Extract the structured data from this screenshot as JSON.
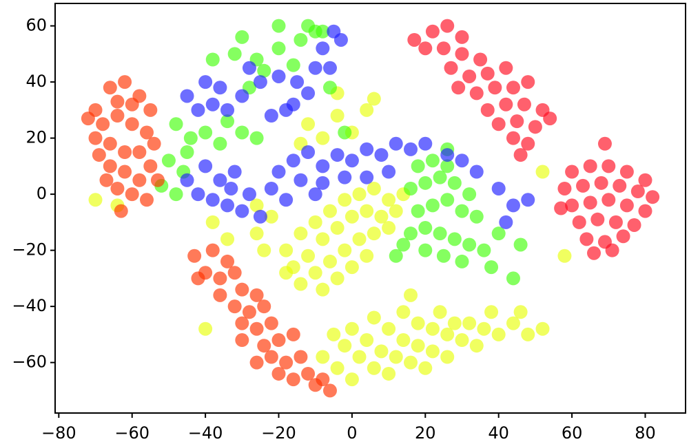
{
  "chart_data": {
    "type": "scatter",
    "xlim": [
      -81,
      91
    ],
    "ylim": [
      -78,
      68
    ],
    "xticks": [
      {
        "value": -80,
        "label": "−80"
      },
      {
        "value": -60,
        "label": "−60"
      },
      {
        "value": -40,
        "label": "−40"
      },
      {
        "value": -20,
        "label": "−20"
      },
      0,
      20,
      40,
      60,
      80
    ],
    "yticks": [
      {
        "value": -60,
        "label": "−60"
      },
      {
        "value": -40,
        "label": "−40"
      },
      {
        "value": -20,
        "label": "−20"
      },
      0,
      20,
      40,
      60
    ],
    "grid": false,
    "series": [
      {
        "color": "#e8ff0a",
        "x": [
          -18,
          -14,
          -10,
          -6,
          -2,
          2,
          6,
          10,
          14,
          -16,
          -12,
          -8,
          -4,
          0,
          4,
          8,
          12,
          -14,
          -10,
          -6,
          -2,
          2,
          6,
          10,
          -8,
          -4,
          0,
          4,
          -18,
          -22,
          -26,
          -24,
          -34,
          -38,
          -8,
          -4,
          0,
          -2,
          2,
          6,
          10,
          0,
          4,
          8,
          12,
          16,
          20,
          6,
          10,
          14,
          18,
          22,
          26,
          14,
          18,
          22,
          26,
          30,
          34,
          24,
          28,
          32,
          36,
          40,
          44,
          48,
          52,
          38,
          46,
          -5,
          -12,
          -8,
          -14,
          -4,
          4,
          6,
          -4,
          0,
          -64,
          -70,
          16,
          52,
          58,
          -40,
          -26
        ],
        "values": [
          -20,
          -14,
          -10,
          -6,
          -2,
          0,
          2,
          -2,
          0,
          -26,
          -22,
          -16,
          -12,
          -8,
          -6,
          -8,
          -6,
          -32,
          -28,
          -24,
          -20,
          -16,
          -14,
          -12,
          -34,
          -30,
          -26,
          -22,
          -28,
          -8,
          -14,
          -20,
          -16,
          -10,
          -58,
          -62,
          -66,
          -54,
          -58,
          -62,
          -64,
          -48,
          -52,
          -56,
          -58,
          -60,
          -62,
          -44,
          -48,
          -52,
          -54,
          -56,
          -58,
          -42,
          -46,
          -48,
          -50,
          -52,
          -54,
          -42,
          -46,
          -46,
          -48,
          -50,
          -46,
          -50,
          -48,
          -42,
          -42,
          -50,
          25,
          20,
          18,
          28,
          30,
          34,
          36,
          22,
          -4,
          -2,
          -36,
          8,
          -22,
          -48,
          -4
        ]
      },
      {
        "color": "#44ff0a",
        "x": [
          -48,
          -44,
          -50,
          -46,
          -40,
          -36,
          -30,
          -34,
          -38,
          -32,
          -26,
          -20,
          -14,
          -8,
          -12,
          -20,
          -24,
          -16,
          -28,
          -45,
          -52,
          -48,
          -26,
          -30,
          -6,
          -2,
          -10,
          18,
          22,
          26,
          16,
          20,
          24,
          28,
          32,
          18,
          22,
          26,
          30,
          34,
          16,
          20,
          24,
          28,
          32,
          36,
          20,
          25,
          30,
          38,
          14,
          12,
          40,
          26,
          46,
          44
        ],
        "values": [
          25,
          20,
          12,
          8,
          22,
          18,
          22,
          26,
          48,
          50,
          48,
          52,
          55,
          58,
          60,
          60,
          44,
          46,
          38,
          15,
          3,
          0,
          20,
          56,
          38,
          22,
          58,
          10,
          12,
          10,
          2,
          4,
          6,
          4,
          0,
          -6,
          -4,
          -2,
          -6,
          -8,
          -14,
          -12,
          -14,
          -16,
          -18,
          -20,
          -20,
          -22,
          -24,
          -26,
          -18,
          -22,
          -14,
          16,
          -18,
          -30
        ]
      },
      {
        "color": "#1f1fff",
        "x": [
          -45,
          -40,
          -36,
          -42,
          -38,
          -34,
          -30,
          -25,
          -20,
          -15,
          -10,
          -8,
          -5,
          -3,
          -12,
          -18,
          -22,
          -40,
          -36,
          -42,
          -38,
          -32,
          -33,
          -45,
          -6,
          -28,
          -16,
          -34,
          -30,
          -28,
          -25,
          -22,
          -20,
          -16,
          -12,
          -8,
          -4,
          0,
          4,
          8,
          12,
          16,
          -14,
          -8,
          -2,
          4,
          10,
          -18,
          20,
          26,
          30,
          34,
          40,
          44,
          48,
          42,
          -10
        ],
        "values": [
          35,
          40,
          38,
          30,
          32,
          30,
          35,
          40,
          42,
          40,
          45,
          52,
          58,
          55,
          36,
          30,
          28,
          10,
          5,
          0,
          -2,
          8,
          2,
          5,
          45,
          45,
          32,
          -4,
          -6,
          0,
          -8,
          2,
          8,
          12,
          15,
          10,
          14,
          12,
          16,
          14,
          18,
          16,
          5,
          4,
          6,
          6,
          8,
          -2,
          18,
          14,
          12,
          8,
          2,
          -4,
          -2,
          -10,
          0
        ]
      },
      {
        "color": "#ff3300",
        "x": [
          -70,
          -66,
          -62,
          -58,
          -55,
          -68,
          -64,
          -60,
          -56,
          -72,
          -70,
          -66,
          -62,
          -58,
          -54,
          -66,
          -62,
          -58,
          -55,
          -64,
          -60,
          -56,
          -63,
          -67,
          -69,
          -53,
          -64,
          -60,
          -43,
          -38,
          -34,
          -40,
          -36,
          -32,
          -30,
          -36,
          -26,
          -32,
          -28,
          -24,
          -30,
          -26,
          -22,
          -30,
          -24,
          -20,
          -16,
          -22,
          -18,
          -14,
          -12,
          -16,
          -10,
          -8,
          -26,
          -20,
          -42,
          -6
        ],
        "values": [
          30,
          38,
          40,
          35,
          30,
          25,
          28,
          25,
          22,
          27,
          20,
          18,
          15,
          15,
          18,
          10,
          8,
          5,
          10,
          2,
          0,
          -2,
          -6,
          5,
          14,
          5,
          33,
          32,
          -22,
          -20,
          -24,
          -28,
          -30,
          -28,
          -34,
          -36,
          -36,
          -40,
          -42,
          -40,
          -46,
          -48,
          -46,
          -52,
          -54,
          -52,
          -50,
          -58,
          -60,
          -58,
          -64,
          -66,
          -68,
          -66,
          -60,
          -64,
          -30,
          -70
        ]
      },
      {
        "color": "#ff0a1e",
        "x": [
          22,
          26,
          30,
          20,
          25,
          30,
          35,
          27,
          32,
          37,
          42,
          34,
          39,
          44,
          48,
          37,
          42,
          47,
          52,
          40,
          45,
          50,
          54,
          44,
          48,
          29,
          17,
          46,
          60,
          65,
          70,
          75,
          80,
          58,
          63,
          68,
          73,
          78,
          82,
          60,
          65,
          70,
          75,
          80,
          62,
          67,
          72,
          77,
          64,
          69,
          74,
          66,
          71,
          57,
          69
        ],
        "values": [
          58,
          60,
          56,
          52,
          52,
          50,
          48,
          45,
          42,
          43,
          45,
          36,
          38,
          38,
          40,
          30,
          32,
          32,
          30,
          25,
          26,
          24,
          27,
          20,
          18,
          38,
          55,
          14,
          8,
          10,
          10,
          8,
          5,
          2,
          3,
          4,
          3,
          1,
          -1,
          -4,
          -3,
          -2,
          -4,
          -6,
          -10,
          -9,
          -10,
          -11,
          -16,
          -17,
          -15,
          -21,
          -20,
          -5,
          18
        ]
      }
    ]
  }
}
